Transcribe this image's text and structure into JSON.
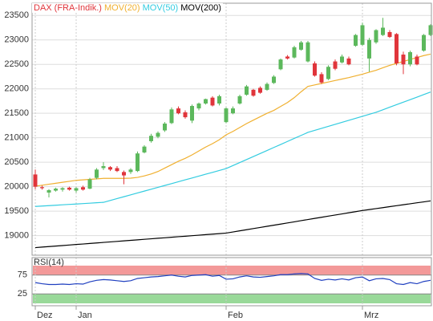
{
  "chart_data": {
    "type": "candlestick",
    "categories": [
      "Dez",
      null,
      null,
      null,
      null,
      null,
      "Jan",
      null,
      null,
      null,
      null,
      null,
      null,
      null,
      null,
      null,
      null,
      null,
      null,
      null,
      null,
      null,
      null,
      null,
      null,
      null,
      null,
      null,
      "Feb",
      null,
      null,
      null,
      null,
      null,
      null,
      null,
      null,
      null,
      null,
      null,
      null,
      null,
      null,
      null,
      null,
      null,
      null,
      null,
      "Mrz",
      null,
      null,
      null,
      null,
      null,
      null,
      null,
      null,
      null,
      null
    ],
    "series": [
      {
        "name": "DAX (FRA-Indik.)",
        "color": "#e0353b",
        "up_color": "#5cb85c",
        "down_color": "#e0353b",
        "open": [
          20250,
          19990,
          19880,
          19920,
          19940,
          19980,
          19920,
          19990,
          19960,
          20180,
          20380,
          20400,
          20380,
          20300,
          20300,
          20320,
          20700,
          20930,
          21020,
          21150,
          21300,
          21600,
          21520,
          21350,
          21600,
          21700,
          21820,
          21700,
          21320,
          21500,
          21700,
          21880,
          21980,
          22020,
          21980,
          22120,
          22400,
          22660,
          22640,
          22800,
          22560,
          22520,
          22300,
          22200,
          22560,
          22540,
          22620,
          22880,
          22900,
          22620,
          22950,
          23100,
          23160,
          23120,
          22700,
          22500,
          22660,
          22780,
          23100
        ],
        "high": [
          20350,
          20020,
          19950,
          19980,
          19990,
          20000,
          19990,
          20020,
          20180,
          20380,
          20500,
          20420,
          20420,
          20330,
          20380,
          20720,
          20850,
          21080,
          21130,
          21320,
          21620,
          21640,
          21560,
          21680,
          21720,
          21800,
          21850,
          21880,
          21620,
          21640,
          21880,
          22080,
          22000,
          22050,
          22130,
          22280,
          22620,
          22690,
          22880,
          22980,
          22980,
          22560,
          22340,
          22480,
          22600,
          22700,
          22660,
          23120,
          23350,
          23040,
          23220,
          23450,
          23200,
          23140,
          22760,
          22780,
          22700,
          23120,
          23320
        ],
        "low": [
          19950,
          19940,
          19780,
          19900,
          19900,
          19920,
          19880,
          19920,
          19950,
          20150,
          20340,
          20320,
          20300,
          20050,
          20260,
          20300,
          20680,
          20900,
          20990,
          21120,
          21280,
          21480,
          21390,
          21300,
          21560,
          21680,
          21640,
          21660,
          21300,
          21480,
          21680,
          21860,
          21840,
          21900,
          21960,
          22100,
          22380,
          22600,
          22620,
          22780,
          22540,
          22250,
          22100,
          22180,
          22380,
          22520,
          22480,
          22860,
          22880,
          22350,
          22920,
          23080,
          23040,
          22480,
          22300,
          22460,
          22480,
          22760,
          23080
        ],
        "close": [
          20000,
          19970,
          19930,
          19960,
          19970,
          19940,
          19970,
          19940,
          20150,
          20350,
          20420,
          20350,
          20320,
          20230,
          20350,
          20680,
          20820,
          21040,
          21100,
          21290,
          21580,
          21500,
          21420,
          21650,
          21700,
          21790,
          21660,
          21850,
          21600,
          21600,
          21850,
          22050,
          21860,
          21920,
          22100,
          22250,
          22600,
          22620,
          22850,
          22950,
          22950,
          22270,
          22130,
          22450,
          22410,
          22660,
          22500,
          23100,
          23300,
          23000,
          23200,
          23250,
          23060,
          22520,
          22500,
          22750,
          22500,
          23100,
          23300
        ]
      }
    ],
    "lines": [
      {
        "name": "MOV(20)",
        "color": "#f0b030",
        "values": [
          20010,
          20030,
          20050,
          20070,
          20090,
          20110,
          20130,
          20140,
          20150,
          20160,
          20170,
          20170,
          20170,
          20170,
          20175,
          20190,
          20220,
          20260,
          20310,
          20380,
          20450,
          20520,
          20580,
          20650,
          20730,
          20810,
          20880,
          20960,
          21060,
          21130,
          21210,
          21290,
          21360,
          21430,
          21500,
          21560,
          21640,
          21720,
          21820,
          21940,
          22050,
          22080,
          22110,
          22140,
          22170,
          22200,
          22230,
          22265,
          22300,
          22340,
          22380,
          22430,
          22480,
          22520,
          22560,
          22600,
          22640,
          22680,
          22710
        ]
      },
      {
        "name": "MOV(50)",
        "color": "#33cce0",
        "values": [
          19596,
          19604,
          19613,
          19621,
          19630,
          19638,
          19646,
          19655,
          19663,
          19672,
          19680,
          19718,
          19757,
          19795,
          19833,
          19872,
          19910,
          19948,
          19987,
          20025,
          20063,
          20102,
          20140,
          20178,
          20217,
          20255,
          20293,
          20332,
          20370,
          20432,
          20493,
          20555,
          20617,
          20678,
          20740,
          20802,
          20863,
          20925,
          20987,
          21048,
          21110,
          21151,
          21192,
          21233,
          21274,
          21315,
          21356,
          21397,
          21438,
          21479,
          21520,
          21572,
          21624,
          21676,
          21728,
          21779,
          21831,
          21883,
          21935
        ]
      },
      {
        "name": "MOV(200)",
        "color": "#000000",
        "values": [
          18755,
          18766,
          18776,
          18787,
          18797,
          18808,
          18819,
          18829,
          18840,
          18850,
          18861,
          18872,
          18882,
          18893,
          18903,
          18914,
          18925,
          18935,
          18946,
          18956,
          18967,
          18978,
          18988,
          18999,
          19009,
          19020,
          19031,
          19041,
          19052,
          19075,
          19098,
          19121,
          19144,
          19167,
          19190,
          19213,
          19236,
          19259,
          19282,
          19306,
          19329,
          19352,
          19375,
          19398,
          19421,
          19444,
          19467,
          19490,
          19513,
          19533,
          19552,
          19572,
          19592,
          19612,
          19631,
          19651,
          19671,
          19690,
          19710
        ]
      }
    ],
    "ylim": [
      18600,
      23750
    ],
    "yticks": [
      19000,
      19500,
      20000,
      20500,
      21000,
      21500,
      22000,
      22500,
      23000,
      23500
    ],
    "grid": true,
    "rsi": {
      "label": "RSI(14)",
      "color": "#2040c0",
      "high_color": "#f08080",
      "low_color": "#80d080",
      "ylim": [
        0,
        100
      ],
      "yticks": [
        25,
        75
      ],
      "values": [
        55,
        52,
        50,
        50,
        51,
        50,
        52,
        51,
        57,
        61,
        63,
        62,
        60,
        58,
        60,
        66,
        68,
        70,
        71,
        73,
        75,
        72,
        70,
        74,
        75,
        76,
        72,
        74,
        64,
        65,
        70,
        73,
        70,
        69,
        71,
        73,
        76,
        76,
        78,
        79,
        78,
        66,
        61,
        64,
        62,
        65,
        62,
        68,
        70,
        60,
        65,
        66,
        63,
        52,
        50,
        55,
        52,
        58,
        61
      ]
    }
  }
}
